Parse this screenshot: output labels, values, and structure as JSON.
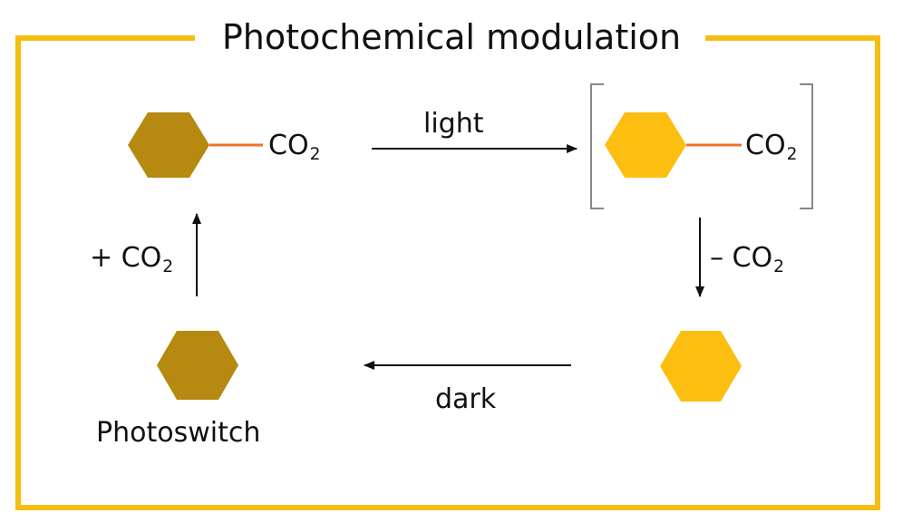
{
  "title": "Photochemical modulation",
  "colors": {
    "border": "#F4BE12",
    "dark_hexagon": "#B68A10",
    "light_hexagon": "#FCBE10",
    "bond": "#E8742A",
    "bracket": "#888888",
    "arrow": "#111111"
  },
  "species": {
    "top_left": {
      "formula": "CO",
      "subscript": "2"
    },
    "top_right": {
      "formula": "CO",
      "subscript": "2"
    },
    "bottom_left": {
      "label": "Photoswitch"
    }
  },
  "steps": {
    "light": {
      "label": "light"
    },
    "release": {
      "label": "– CO",
      "subscript": "2"
    },
    "dark": {
      "label": "dark"
    },
    "capture": {
      "label": "+ CO",
      "subscript": "2"
    }
  }
}
